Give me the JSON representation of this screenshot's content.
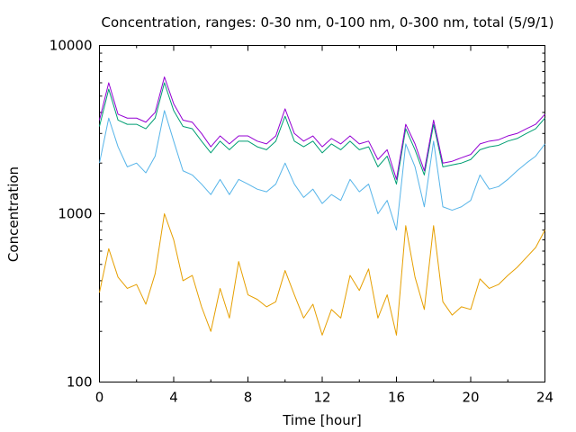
{
  "chart_data": {
    "type": "line",
    "title": "Concentration, ranges: 0-30 nm, 0-100 nm, 0-300 nm, total (5/9/1)",
    "xlabel": "Time [hour]",
    "ylabel": "Concentration",
    "xlim": [
      0,
      24
    ],
    "ylim": [
      100,
      10000
    ],
    "yscale": "log",
    "grid": false,
    "legend": "none",
    "x_ticks": [
      "0",
      "4",
      "8",
      "12",
      "16",
      "20",
      "24"
    ],
    "y_ticks": [
      "100",
      "1000",
      "10000"
    ],
    "x": [
      0.0,
      0.5,
      1.0,
      1.5,
      2.0,
      2.5,
      3.0,
      3.5,
      4.0,
      4.5,
      5.0,
      5.5,
      6.0,
      6.5,
      7.0,
      7.5,
      8.0,
      8.5,
      9.0,
      9.5,
      10.0,
      10.5,
      11.0,
      11.5,
      12.0,
      12.5,
      13.0,
      13.5,
      14.0,
      14.5,
      15.0,
      15.5,
      16.0,
      16.5,
      17.0,
      17.5,
      18.0,
      18.5,
      19.0,
      19.5,
      20.0,
      20.5,
      21.0,
      21.5,
      22.0,
      22.5,
      23.0,
      23.5,
      24.0
    ],
    "series": [
      {
        "color": "#e69f00",
        "values": [
          340,
          620,
          420,
          360,
          380,
          290,
          440,
          1000,
          700,
          400,
          430,
          280,
          200,
          360,
          240,
          520,
          330,
          310,
          280,
          300,
          460,
          330,
          240,
          290,
          190,
          270,
          240,
          430,
          350,
          470,
          240,
          330,
          190,
          850,
          420,
          270,
          850,
          300,
          250,
          280,
          270,
          410,
          360,
          380,
          430,
          480,
          550,
          630,
          800
        ]
      },
      {
        "color": "#56b4e9",
        "values": [
          2000,
          3700,
          2500,
          1900,
          2000,
          1750,
          2200,
          4100,
          2700,
          1800,
          1700,
          1500,
          1300,
          1600,
          1300,
          1600,
          1500,
          1400,
          1350,
          1500,
          2000,
          1500,
          1250,
          1400,
          1150,
          1300,
          1200,
          1600,
          1350,
          1500,
          1000,
          1200,
          800,
          2600,
          1900,
          1100,
          2700,
          1100,
          1050,
          1100,
          1200,
          1700,
          1400,
          1450,
          1600,
          1800,
          2000,
          2200,
          2600
        ]
      },
      {
        "color": "#009e73",
        "values": [
          3300,
          5500,
          3600,
          3400,
          3400,
          3200,
          3700,
          6000,
          4100,
          3300,
          3200,
          2700,
          2300,
          2700,
          2400,
          2700,
          2700,
          2500,
          2400,
          2700,
          3800,
          2700,
          2500,
          2700,
          2300,
          2600,
          2400,
          2700,
          2400,
          2500,
          1900,
          2200,
          1500,
          3200,
          2400,
          1700,
          3400,
          1900,
          1950,
          2000,
          2100,
          2400,
          2500,
          2550,
          2700,
          2800,
          3000,
          3200,
          3700
        ]
      },
      {
        "color": "#9400d3",
        "values": [
          3600,
          6000,
          3900,
          3700,
          3700,
          3500,
          4000,
          6500,
          4500,
          3600,
          3500,
          3000,
          2500,
          2900,
          2600,
          2900,
          2900,
          2700,
          2600,
          2900,
          4200,
          3000,
          2700,
          2900,
          2500,
          2800,
          2600,
          2900,
          2600,
          2700,
          2100,
          2400,
          1600,
          3400,
          2600,
          1800,
          3600,
          2000,
          2050,
          2150,
          2250,
          2600,
          2700,
          2750,
          2900,
          3000,
          3200,
          3400,
          3900
        ]
      }
    ]
  }
}
